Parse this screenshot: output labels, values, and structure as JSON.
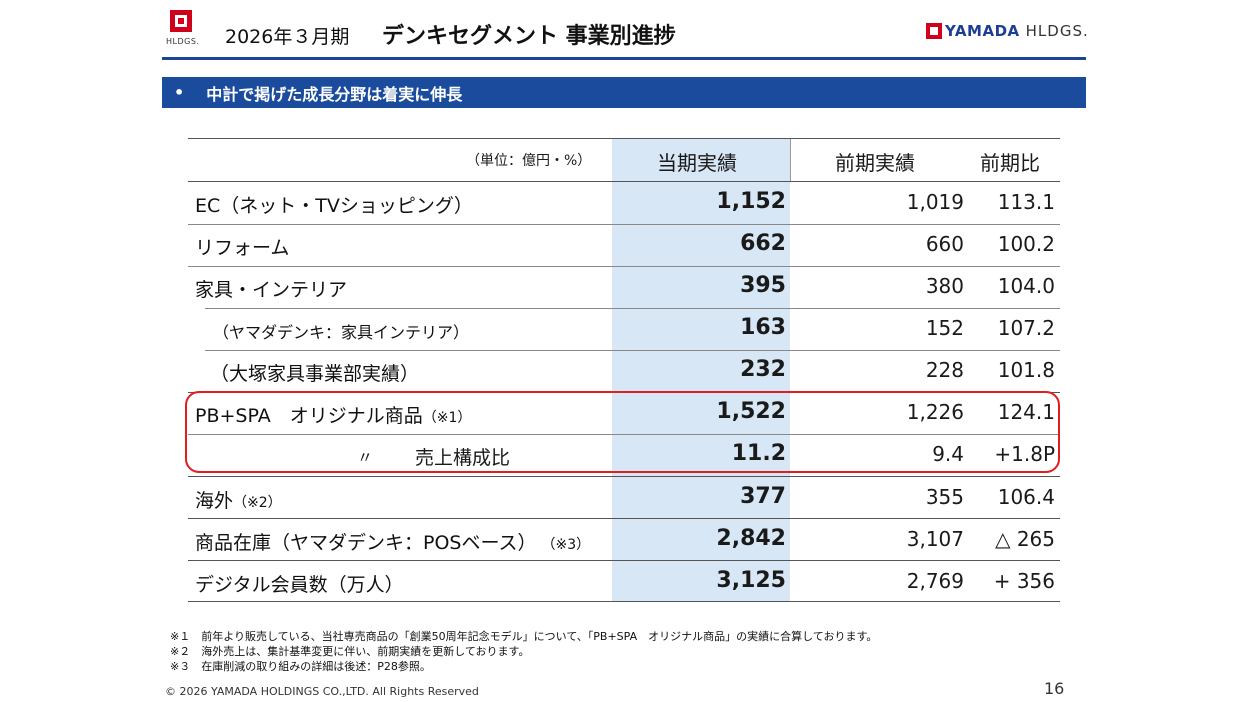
{
  "header": {
    "logo_text": "HLDGS.",
    "period": "2026年３月期",
    "title": "デンキセグメント 事業別進捗",
    "brand_name": "YAMADA",
    "brand_suffix": "HLDGS."
  },
  "banner": {
    "bullet": "•",
    "text": "中計で掲げた成長分野は着実に伸長"
  },
  "table": {
    "unit_label": "（単位：億円・%）",
    "col_current": "当期実績",
    "col_previous": "前期実績",
    "col_ratio": "前期比",
    "rows": [
      {
        "label": "EC（ネット・TVショッピング）",
        "current": "1,152",
        "previous": "1,019",
        "ratio": "113.1"
      },
      {
        "label": "リフォーム",
        "current": "662",
        "previous": "660",
        "ratio": "100.2"
      },
      {
        "label": "家具・インテリア",
        "current": "395",
        "previous": "380",
        "ratio": "104.0"
      },
      {
        "label": "（ヤマダデンキ：家具インテリア）",
        "current": "163",
        "previous": "152",
        "ratio": "107.2"
      },
      {
        "label": "（大塚家具事業部実績）",
        "current": "232",
        "previous": "228",
        "ratio": "101.8"
      },
      {
        "label": "PB+SPA　オリジナル商品",
        "note": "（※1）",
        "current": "1,522",
        "previous": "1,226",
        "ratio": "124.1"
      },
      {
        "label_mark": "〃",
        "label": "売上構成比",
        "current": "11.2",
        "previous": "9.4",
        "ratio": "+1.8P"
      },
      {
        "label": "海外",
        "note": "（※2）",
        "current": "377",
        "previous": "355",
        "ratio": "106.4"
      },
      {
        "label": "商品在庫（ヤマダデンキ：POSベース）",
        "note": "（※3）",
        "current": "2,842",
        "previous": "3,107",
        "ratio": "△ 265"
      },
      {
        "label": "デジタル会員数（万人）",
        "current": "3,125",
        "previous": "2,769",
        "ratio": "+ 356"
      }
    ]
  },
  "footnotes": [
    "※１　前年より販売している、当社専売商品の「創業50周年記念モデル」について、「PB+SPA　オリジナル商品」の実績に合算しております。",
    "※２　海外売上は、集計基準変更に伴い、前期実績を更新しております。",
    "※３　在庫削減の取り組みの詳細は後述：P28参照。"
  ],
  "copyright": "© 2026 YAMADA HOLDINGS CO.,LTD. All Rights Reserved",
  "page_number": "16",
  "colors": {
    "banner": "#1a4b9c",
    "highlight_column": "#d8e7f5",
    "red_box": "#e21d1d",
    "brand_red": "#d0021b"
  }
}
